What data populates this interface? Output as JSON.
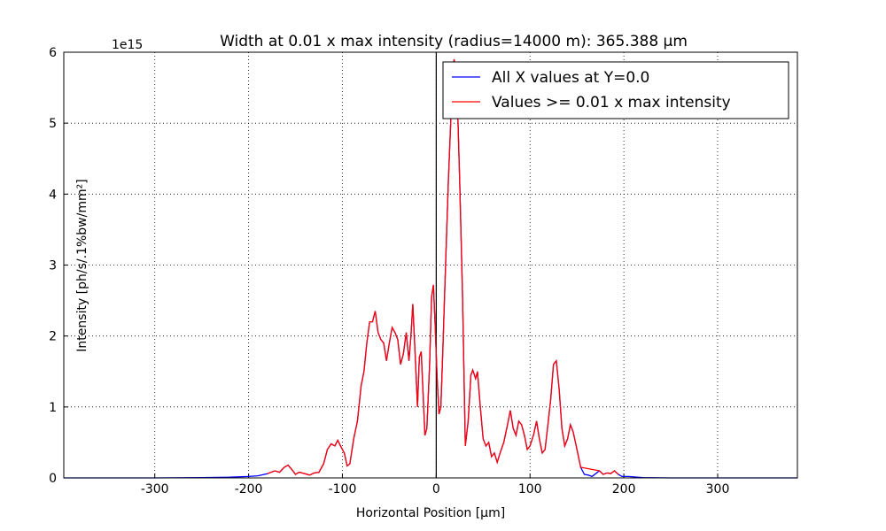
{
  "chart_data": {
    "type": "line",
    "title": "Width at 0.01 x max intensity (radius=14000 m): 365.388 µm",
    "x_label": "Horizontal Position [µm]",
    "y_label": "Intensity [ph/s/.1%bw/mm²]",
    "y_offset_label": "1e15",
    "xlim": [
      -397,
      385
    ],
    "ylim": [
      0,
      6
    ],
    "xticks": [
      -300,
      -200,
      -100,
      0,
      100,
      200,
      300
    ],
    "yticks": [
      0,
      1,
      2,
      3,
      4,
      5,
      6
    ],
    "grid": true,
    "legend": "upper right",
    "vline": 0,
    "series": [
      {
        "name": "All X values at Y=0.0",
        "color": "#0000ff",
        "x": [
          -397,
          -300,
          -250,
          -220,
          -200,
          -190,
          -180,
          -172,
          -167,
          -162,
          -158,
          -154,
          -150,
          -146,
          -140,
          -135,
          -130,
          -125,
          -120,
          -116,
          -112,
          -108,
          -105,
          -102,
          -98,
          -95,
          -92,
          -88,
          -84,
          -80,
          -77,
          -74,
          -71,
          -68,
          -65,
          -62,
          -59,
          -56,
          -53,
          -50,
          -47,
          -44,
          -41,
          -38,
          -35,
          -32,
          -29,
          -27,
          -25,
          -22,
          -20,
          -18,
          -16,
          -14,
          -12,
          -10,
          -7,
          -5,
          -3,
          -1,
          1,
          3,
          5,
          7,
          10,
          13,
          16,
          19,
          22,
          25,
          28,
          31,
          34,
          37,
          39,
          42,
          44,
          47,
          50,
          53,
          56,
          59,
          62,
          65,
          68,
          72,
          76,
          79,
          82,
          85,
          88,
          91,
          94,
          97,
          100,
          104,
          107,
          110,
          113,
          116,
          119,
          122,
          125,
          128,
          131,
          134,
          137,
          140,
          143,
          146,
          150,
          154,
          158,
          162,
          166,
          170,
          174,
          178,
          182,
          186,
          190,
          194,
          198,
          205,
          220,
          250,
          385
        ],
        "values": [
          0,
          0,
          0.005,
          0.01,
          0.02,
          0.03,
          0.06,
          0.1,
          0.08,
          0.15,
          0.18,
          0.12,
          0.05,
          0.08,
          0.06,
          0.04,
          0.07,
          0.08,
          0.2,
          0.4,
          0.48,
          0.45,
          0.53,
          0.45,
          0.35,
          0.17,
          0.2,
          0.55,
          0.8,
          1.3,
          1.5,
          1.9,
          2.2,
          2.2,
          2.35,
          2.05,
          1.95,
          1.9,
          1.65,
          1.9,
          2.12,
          2.05,
          1.95,
          1.6,
          1.75,
          2.05,
          1.65,
          2.0,
          2.45,
          1.6,
          1.0,
          1.7,
          1.78,
          1.2,
          0.6,
          0.7,
          1.6,
          2.55,
          2.72,
          2.1,
          1.4,
          0.9,
          1.0,
          1.8,
          3.0,
          4.2,
          5.2,
          5.9,
          5.6,
          4.2,
          2.6,
          0.45,
          0.8,
          1.45,
          1.52,
          1.4,
          1.5,
          1.0,
          0.55,
          0.45,
          0.5,
          0.3,
          0.35,
          0.22,
          0.35,
          0.5,
          0.75,
          0.95,
          0.7,
          0.6,
          0.8,
          0.75,
          0.6,
          0.4,
          0.45,
          0.62,
          0.8,
          0.55,
          0.35,
          0.4,
          0.75,
          1.1,
          1.6,
          1.65,
          1.25,
          0.7,
          0.45,
          0.55,
          0.75,
          0.65,
          0.4,
          0.15,
          0.05,
          0.04,
          0.02,
          0.06,
          0.1,
          0.05,
          0.07,
          0.06,
          0.1,
          0.05,
          0.02,
          0.02,
          0.005,
          0,
          0
        ]
      },
      {
        "name": "Values >= 0.01 x max intensity",
        "color": "#ff0000",
        "x": [
          -180,
          -172,
          -167,
          -162,
          -158,
          -154,
          -150,
          -146,
          -140,
          -135,
          -130,
          -125,
          -120,
          -116,
          -112,
          -108,
          -105,
          -102,
          -98,
          -95,
          -92,
          -88,
          -84,
          -80,
          -77,
          -74,
          -71,
          -68,
          -65,
          -62,
          -59,
          -56,
          -53,
          -50,
          -47,
          -44,
          -41,
          -38,
          -35,
          -32,
          -29,
          -27,
          -25,
          -22,
          -20,
          -18,
          -16,
          -14,
          -12,
          -10,
          -7,
          -5,
          -3,
          -1,
          1,
          3,
          5,
          7,
          10,
          13,
          16,
          19,
          22,
          25,
          28,
          31,
          34,
          37,
          39,
          42,
          44,
          47,
          50,
          53,
          56,
          59,
          62,
          65,
          68,
          72,
          76,
          79,
          82,
          85,
          88,
          91,
          94,
          97,
          100,
          104,
          107,
          110,
          113,
          116,
          119,
          122,
          125,
          128,
          131,
          134,
          137,
          140,
          143,
          146,
          150,
          154,
          174,
          178,
          182,
          186,
          190,
          194
        ],
        "values": [
          0.06,
          0.1,
          0.08,
          0.15,
          0.18,
          0.12,
          0.05,
          0.08,
          0.06,
          0.04,
          0.07,
          0.08,
          0.2,
          0.4,
          0.48,
          0.45,
          0.53,
          0.45,
          0.35,
          0.17,
          0.2,
          0.55,
          0.8,
          1.3,
          1.5,
          1.9,
          2.2,
          2.2,
          2.35,
          2.05,
          1.95,
          1.9,
          1.65,
          1.9,
          2.12,
          2.05,
          1.95,
          1.6,
          1.75,
          2.05,
          1.65,
          2.0,
          2.45,
          1.6,
          1.0,
          1.7,
          1.78,
          1.2,
          0.6,
          0.7,
          1.6,
          2.55,
          2.72,
          2.1,
          1.4,
          0.9,
          1.0,
          1.8,
          3.0,
          4.2,
          5.2,
          5.9,
          5.6,
          4.2,
          2.6,
          0.45,
          0.8,
          1.45,
          1.52,
          1.4,
          1.5,
          1.0,
          0.55,
          0.45,
          0.5,
          0.3,
          0.35,
          0.22,
          0.35,
          0.5,
          0.75,
          0.95,
          0.7,
          0.6,
          0.8,
          0.75,
          0.6,
          0.4,
          0.45,
          0.62,
          0.8,
          0.55,
          0.35,
          0.4,
          0.75,
          1.1,
          1.6,
          1.65,
          1.25,
          0.7,
          0.45,
          0.55,
          0.75,
          0.65,
          0.4,
          0.15,
          0.1,
          0.05,
          0.07,
          0.06,
          0.1,
          0.05
        ]
      }
    ]
  }
}
